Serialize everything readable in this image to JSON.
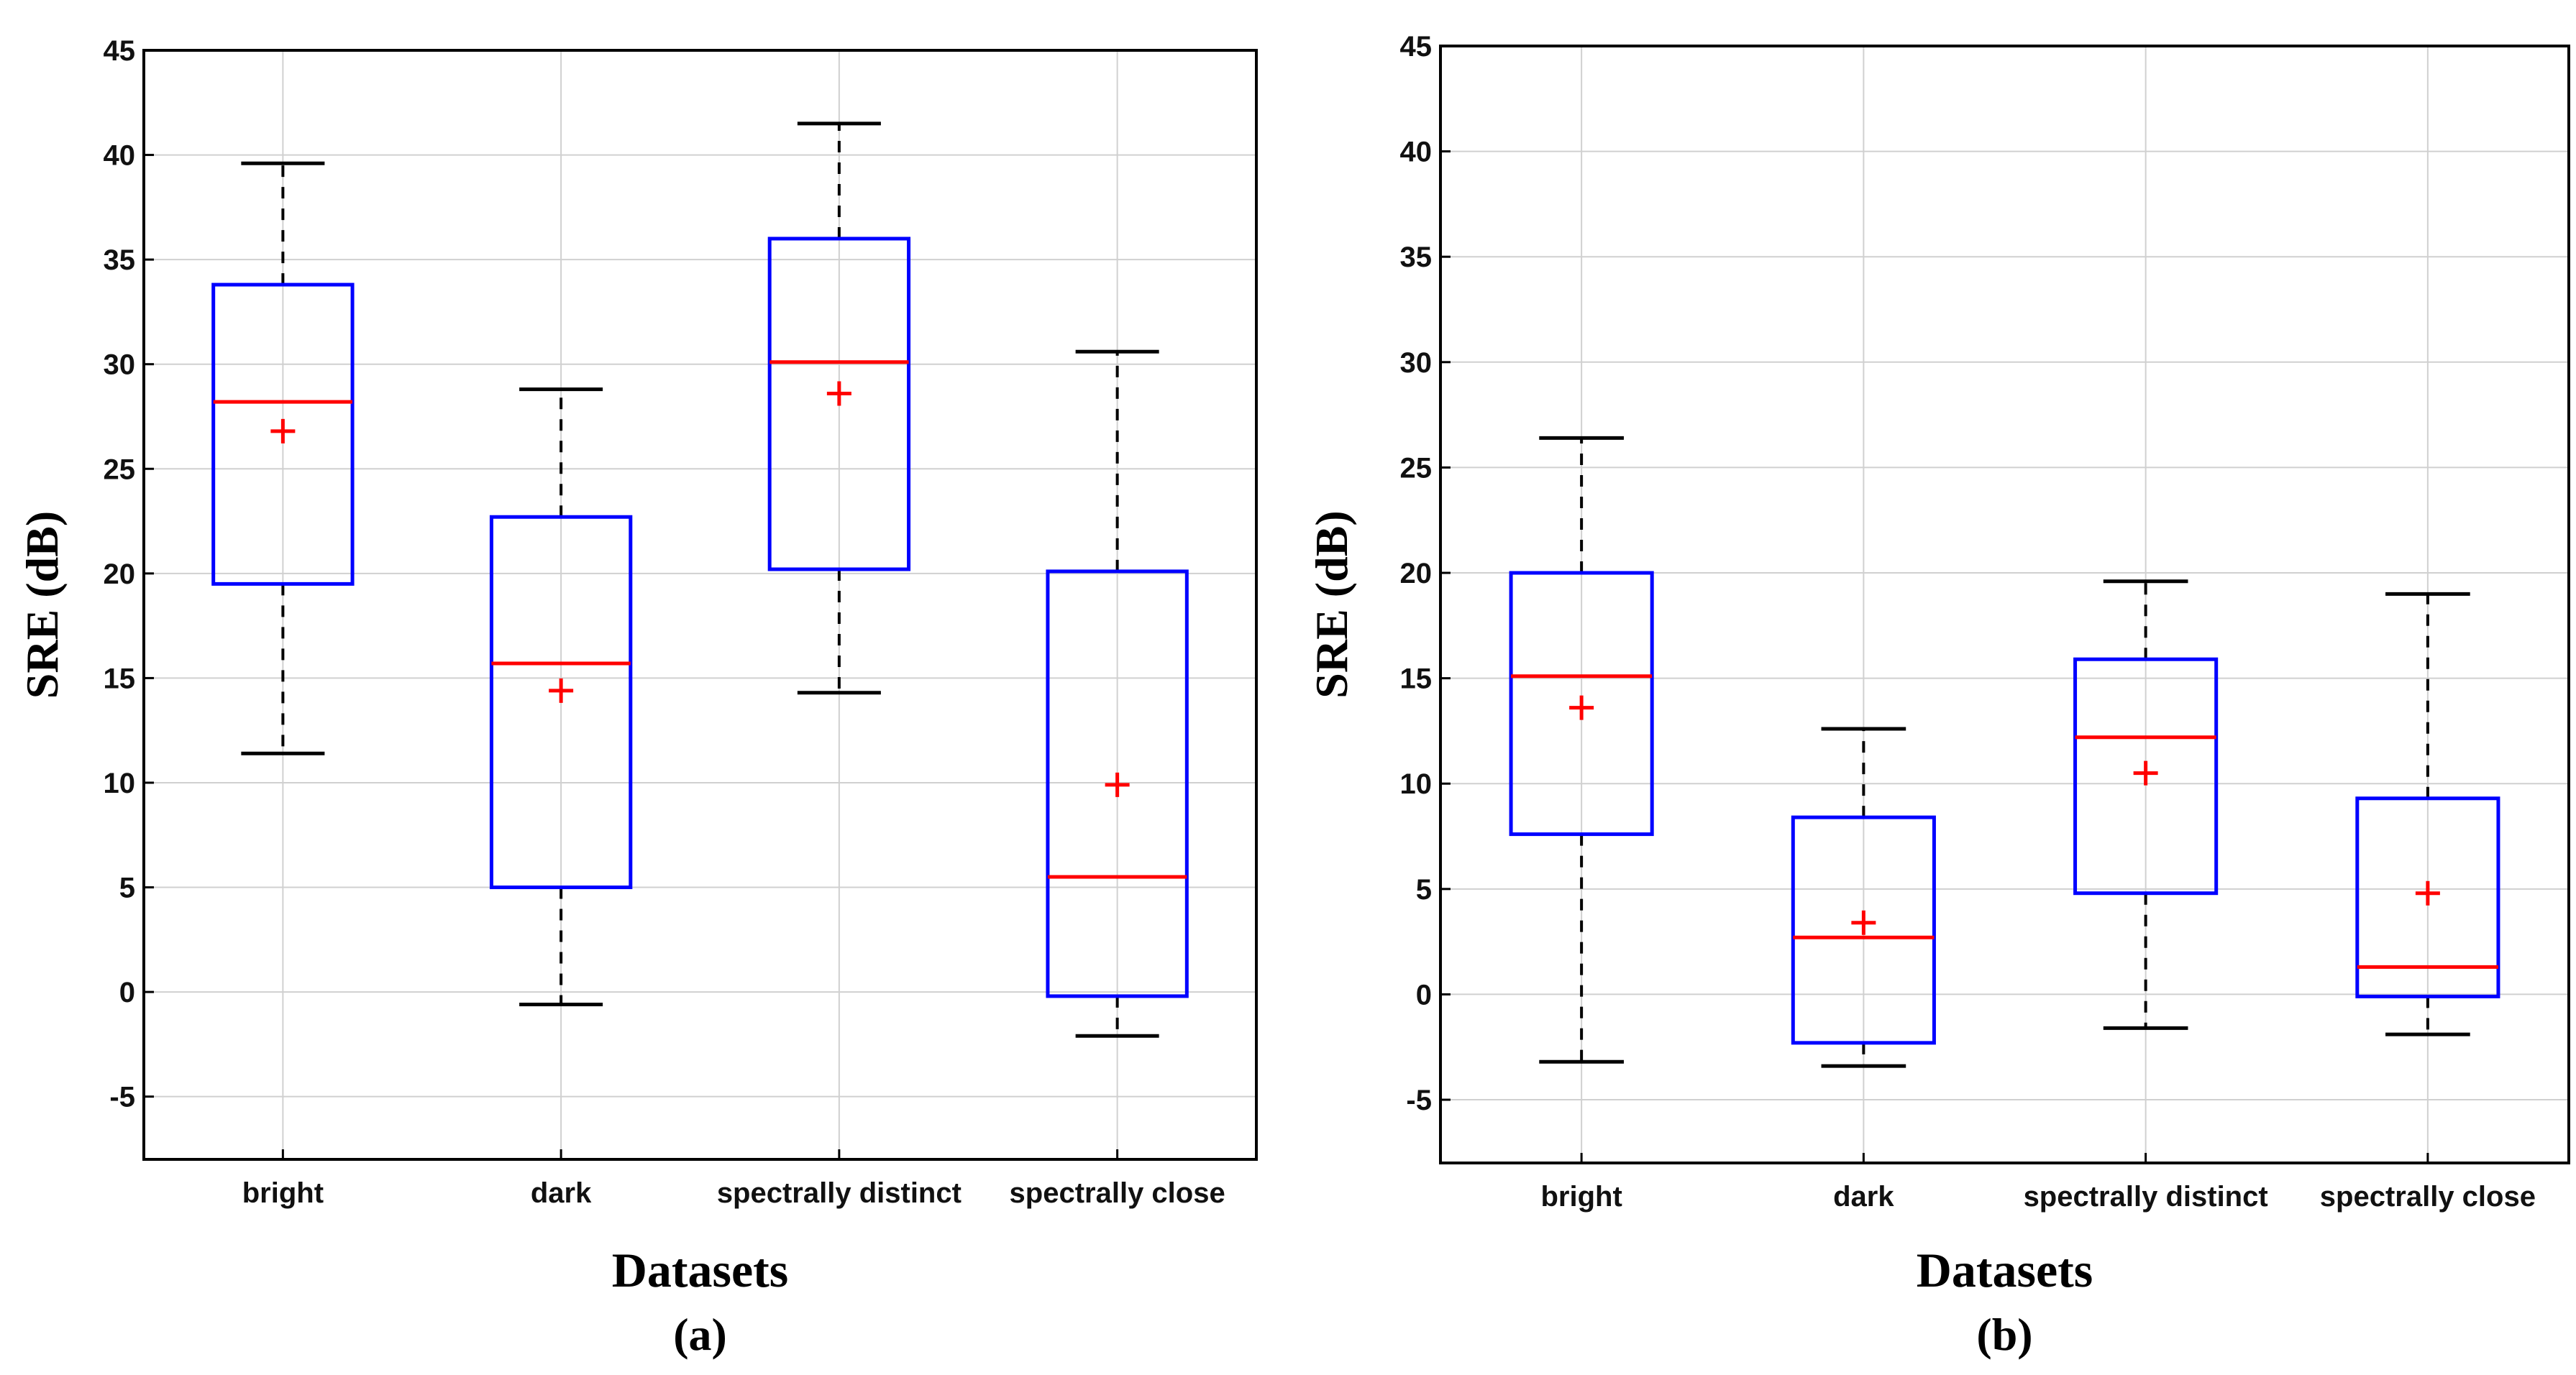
{
  "figure": {
    "panels": [
      "(a)",
      "(b)"
    ]
  },
  "colors": {
    "box": "#0000ff",
    "median": "#ff0000",
    "mean": "#ff0000",
    "whisker": "#000000",
    "grid": "#d0d0d0"
  },
  "chart_data": [
    {
      "type": "box",
      "panel_label": "(a)",
      "title": "",
      "xlabel": "Datasets",
      "ylabel": "SRE (dB)",
      "ylim": [
        -8,
        45
      ],
      "yticks": [
        -5,
        0,
        5,
        10,
        15,
        20,
        25,
        30,
        35,
        40,
        45
      ],
      "categories": [
        "bright",
        "dark",
        "spectrally distinct",
        "spectrally close"
      ],
      "boxes": [
        {
          "name": "bright",
          "whisker_low": 11.4,
          "q1": 19.5,
          "median": 28.2,
          "q3": 33.8,
          "whisker_high": 39.6,
          "mean": 26.8
        },
        {
          "name": "dark",
          "whisker_low": -0.6,
          "q1": 5.0,
          "median": 15.7,
          "q3": 22.7,
          "whisker_high": 28.8,
          "mean": 14.4
        },
        {
          "name": "spectrally distinct",
          "whisker_low": 14.3,
          "q1": 20.2,
          "median": 30.1,
          "q3": 36.0,
          "whisker_high": 41.5,
          "mean": 28.6
        },
        {
          "name": "spectrally close",
          "whisker_low": -2.1,
          "q1": -0.2,
          "median": 5.5,
          "q3": 20.1,
          "whisker_high": 30.6,
          "mean": 9.9
        }
      ]
    },
    {
      "type": "box",
      "panel_label": "(b)",
      "title": "",
      "xlabel": "Datasets",
      "ylabel": "SRE (dB)",
      "ylim": [
        -8,
        45
      ],
      "yticks": [
        -5,
        0,
        5,
        10,
        15,
        20,
        25,
        30,
        35,
        40,
        45
      ],
      "categories": [
        "bright",
        "dark",
        "spectrally distinct",
        "spectrally close"
      ],
      "boxes": [
        {
          "name": "bright",
          "whisker_low": -3.2,
          "q1": 7.6,
          "median": 15.1,
          "q3": 20.0,
          "whisker_high": 26.4,
          "mean": 13.6
        },
        {
          "name": "dark",
          "whisker_low": -3.4,
          "q1": -2.3,
          "median": 2.7,
          "q3": 8.4,
          "whisker_high": 12.6,
          "mean": 3.4
        },
        {
          "name": "spectrally distinct",
          "whisker_low": -1.6,
          "q1": 4.8,
          "median": 12.2,
          "q3": 15.9,
          "whisker_high": 19.6,
          "mean": 10.5
        },
        {
          "name": "spectrally close",
          "whisker_low": -1.9,
          "q1": -0.1,
          "median": 1.3,
          "q3": 9.3,
          "whisker_high": 19.0,
          "mean": 4.8
        }
      ]
    }
  ]
}
